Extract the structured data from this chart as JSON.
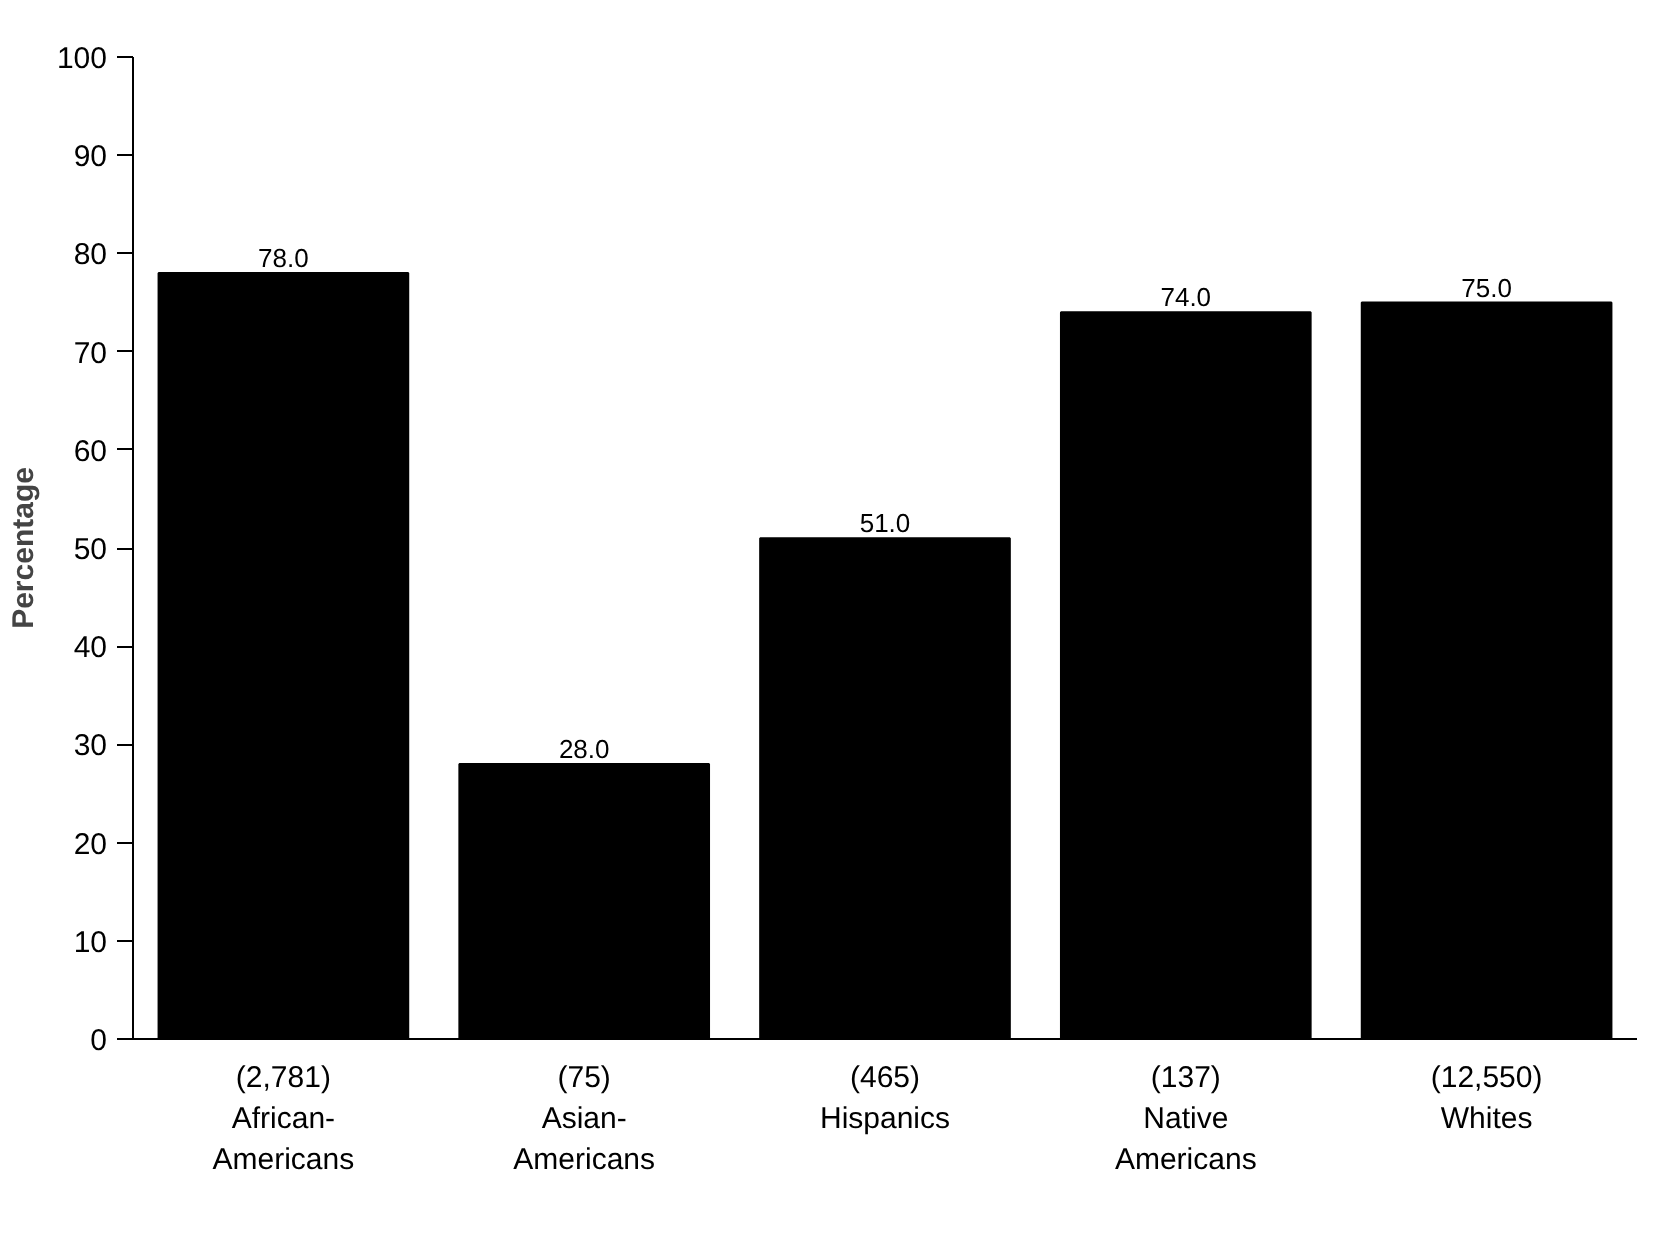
{
  "chart_data": {
    "type": "bar",
    "ylabel": "Percentage",
    "categories": [
      "(2,781)\nAfrican-\nAmericans",
      "(75)\nAsian-\nAmericans",
      "(465)\nHispanics",
      "(137)\nNative\nAmericans",
      "(12,550)\nWhites"
    ],
    "values": [
      78.0,
      28.0,
      51.0,
      74.0,
      75.0
    ],
    "value_labels": [
      "78.0",
      "28.0",
      "51.0",
      "74.0",
      "75.0"
    ],
    "color": "#000000",
    "ylim": [
      0,
      100
    ],
    "yticks": [
      0,
      10,
      20,
      30,
      40,
      50,
      60,
      70,
      80,
      90,
      100
    ],
    "grid": false
  }
}
